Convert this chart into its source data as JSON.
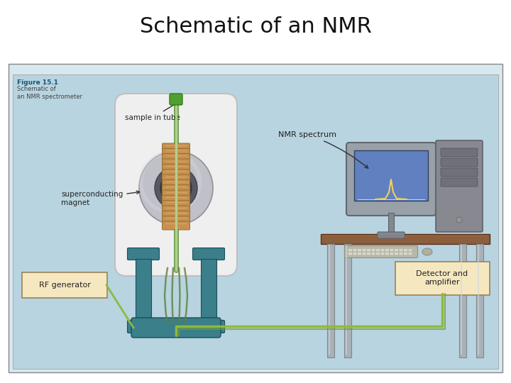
{
  "title": "Schematic of an NMR",
  "title_fontsize": 22,
  "fig_bg": "#ffffff",
  "diagram_bg": "#b8d4e0",
  "figure_label": "Figure 15.1",
  "figure_label_color": "#1a5276",
  "figure_caption": "Schematic of\nan NMR spectrometer",
  "label_sample": "sample in tube",
  "label_magnet": "superconducting\nmagnet",
  "label_rf": "RF generator",
  "label_nmr": "NMR spectrum",
  "label_detector": "Detector and\namplifier",
  "box_color": "#f5e8c0",
  "box_edge": "#9b8355",
  "teal_color": "#3a7f8a",
  "teal_dark": "#1a4f58",
  "wire_color": "#90b840",
  "coil_color": "#c89050",
  "coil_edge": "#907030",
  "magnet_outer": "#e8e8e8",
  "magnet_border": "#b0b0b0",
  "bore_gray": "#a0a0a8",
  "bore_dark": "#606068",
  "table_brown": "#7b4e2c",
  "table_top_brown": "#8b5e3c",
  "leg_silver": "#a8b0b8",
  "monitor_case": "#909898",
  "screen_color": "#6080c0",
  "cpu_color": "#888890",
  "keyboard_color": "#b8b8a8",
  "text_color": "#222222",
  "caption_color": "#444444"
}
